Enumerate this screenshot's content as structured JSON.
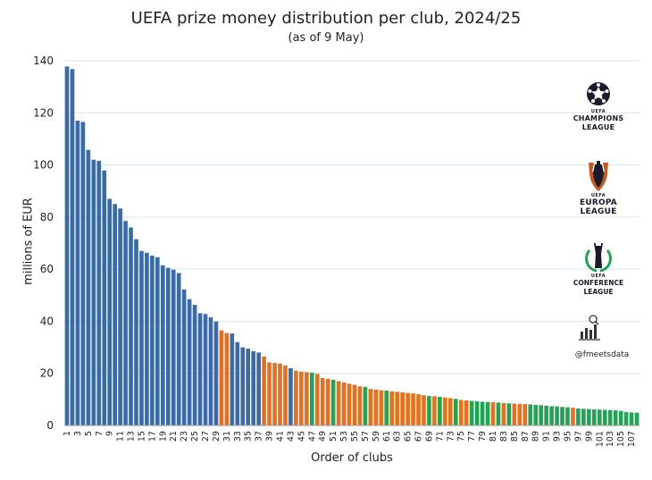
{
  "chart_data": {
    "type": "bar",
    "title": "UEFA prize money distribution per club, 2024/25",
    "subtitle": "(as of 9 May)",
    "xlabel": "Order of clubs",
    "ylabel": "millions of EUR",
    "ylim": [
      0,
      140
    ],
    "yticks": [
      0,
      20,
      40,
      60,
      80,
      100,
      120,
      140
    ],
    "xtick_labels": [
      "1",
      "3",
      "5",
      "7",
      "9",
      "11",
      "13",
      "15",
      "17",
      "19",
      "21",
      "23",
      "25",
      "27",
      "29",
      "31",
      "33",
      "35",
      "37",
      "39",
      "41",
      "43",
      "45",
      "47",
      "49",
      "51",
      "53",
      "55",
      "57",
      "59",
      "61",
      "63",
      "65",
      "67",
      "69",
      "71",
      "73",
      "75",
      "77",
      "79",
      "81",
      "83",
      "85",
      "87",
      "89",
      "91",
      "93",
      "95",
      "97",
      "99",
      "101",
      "103",
      "105",
      "107"
    ],
    "x": [
      1,
      2,
      3,
      4,
      5,
      6,
      7,
      8,
      9,
      10,
      11,
      12,
      13,
      14,
      15,
      16,
      17,
      18,
      19,
      20,
      21,
      22,
      23,
      24,
      25,
      26,
      27,
      28,
      29,
      30,
      31,
      32,
      33,
      34,
      35,
      36,
      37,
      38,
      39,
      40,
      41,
      42,
      43,
      44,
      45,
      46,
      47,
      48,
      49,
      50,
      51,
      52,
      53,
      54,
      55,
      56,
      57,
      58,
      59,
      60,
      61,
      62,
      63,
      64,
      65,
      66,
      67,
      68,
      69,
      70,
      71,
      72,
      73,
      74,
      75,
      76,
      77,
      78,
      79,
      80,
      81,
      82,
      83,
      84,
      85,
      86,
      87,
      88,
      89,
      90,
      91,
      92,
      93,
      94,
      95,
      96,
      97,
      98,
      99,
      100,
      101,
      102,
      103,
      104,
      105,
      106,
      107,
      108
    ],
    "values": [
      137.8,
      136.8,
      117,
      116.5,
      105.8,
      102,
      101.6,
      97.9,
      87,
      85,
      83.3,
      78.5,
      76,
      71.5,
      67,
      66.3,
      65.2,
      64.6,
      61.5,
      60.5,
      59.8,
      58.5,
      52.2,
      48.5,
      46.3,
      43.1,
      42.8,
      41.5,
      39.9,
      36.5,
      35.5,
      35.3,
      32,
      30,
      29.5,
      28.5,
      28,
      26.5,
      24.2,
      24,
      23.8,
      23,
      22,
      21,
      20.7,
      20.5,
      20.3,
      19.8,
      18.2,
      17.9,
      17.5,
      17,
      16.5,
      16,
      15.6,
      15,
      14.8,
      14,
      13.8,
      13.5,
      13.4,
      13.1,
      12.9,
      12.7,
      12.5,
      12.3,
      12,
      11.6,
      11.3,
      11.2,
      11,
      10.7,
      10.5,
      10.2,
      9.8,
      9.6,
      9.4,
      9.3,
      9.1,
      9,
      8.9,
      8.8,
      8.6,
      8.5,
      8.4,
      8.3,
      8.2,
      8.1,
      7.9,
      7.8,
      7.6,
      7.4,
      7.3,
      7.1,
      7,
      6.8,
      6.5,
      6.4,
      6.3,
      6.2,
      6.1,
      6,
      5.9,
      5.8,
      5.6,
      5.2,
      5,
      4.9
    ],
    "competition": [
      "UCL",
      "UCL",
      "UCL",
      "UCL",
      "UCL",
      "UCL",
      "UCL",
      "UCL",
      "UCL",
      "UCL",
      "UCL",
      "UCL",
      "UCL",
      "UCL",
      "UCL",
      "UCL",
      "UCL",
      "UCL",
      "UCL",
      "UCL",
      "UCL",
      "UCL",
      "UCL",
      "UCL",
      "UCL",
      "UCL",
      "UCL",
      "UCL",
      "UCL",
      "UEL",
      "UEL",
      "UCL",
      "UCL",
      "UCL",
      "UCL",
      "UCL",
      "UCL",
      "UEL",
      "UEL",
      "UEL",
      "UEL",
      "UEL",
      "UCL",
      "UEL",
      "UEL",
      "UEL",
      "UECL",
      "UEL",
      "UEL",
      "UEL",
      "UECL",
      "UEL",
      "UEL",
      "UEL",
      "UEL",
      "UEL",
      "UECL",
      "UEL",
      "UEL",
      "UEL",
      "UECL",
      "UEL",
      "UEL",
      "UEL",
      "UEL",
      "UEL",
      "UEL",
      "UEL",
      "UECL",
      "UEL",
      "UECL",
      "UEL",
      "UEL",
      "UECL",
      "UEL",
      "UEL",
      "UECL",
      "UECL",
      "UECL",
      "UECL",
      "UEL",
      "UECL",
      "UEL",
      "UECL",
      "UEL",
      "UEL",
      "UEL",
      "UECL",
      "UECL",
      "UECL",
      "UECL",
      "UECL",
      "UECL",
      "UECL",
      "UECL",
      "UEL",
      "UECL",
      "UECL",
      "UECL",
      "UECL",
      "UECL",
      "UECL",
      "UECL",
      "UECL",
      "UECL",
      "UECL",
      "UECL",
      "UECL"
    ],
    "colors": {
      "UCL": "#3a6aa8",
      "UEL": "#e8701c",
      "UECL": "#1fa655"
    },
    "legend": {
      "position": "right",
      "items": [
        {
          "key": "UCL",
          "uefa": "UEFA",
          "name": "CHAMPIONS",
          "name2": "LEAGUE"
        },
        {
          "key": "UEL",
          "uefa": "UEFA",
          "name": "EUROPA",
          "name2": "LEAGUE"
        },
        {
          "key": "UECL",
          "uefa": "UEFA",
          "name": "CONFERENCE",
          "name2": "LEAGUE"
        }
      ]
    },
    "credit": "@fmeetsdata",
    "grid": true
  }
}
